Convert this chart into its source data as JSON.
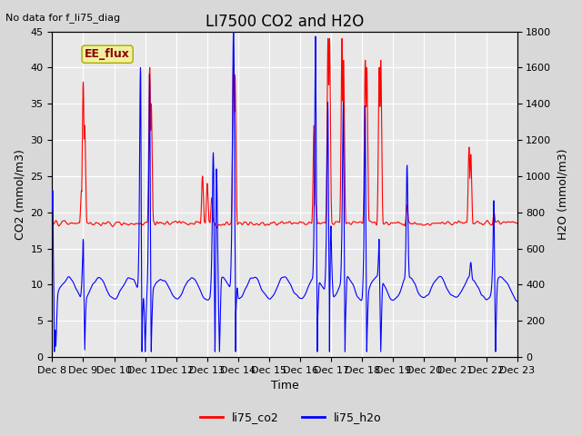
{
  "title": "LI7500 CO2 and H2O",
  "xlabel": "Time",
  "ylabel_left": "CO2 (mmol/m3)",
  "ylabel_right": "H2O (mmol/m3)",
  "annotation_top_left": "No data for f_li75_diag",
  "box_label": "EE_flux",
  "legend_labels": [
    "li75_co2",
    "li75_h2o"
  ],
  "co2_color": "red",
  "h2o_color": "blue",
  "co2_ylim": [
    0,
    45
  ],
  "h2o_ylim": [
    0,
    1800
  ],
  "co2_yticks": [
    0,
    5,
    10,
    15,
    20,
    25,
    30,
    35,
    40,
    45
  ],
  "h2o_yticks": [
    0,
    200,
    400,
    600,
    800,
    1000,
    1200,
    1400,
    1600,
    1800
  ],
  "fig_bg_color": "#d8d8d8",
  "plot_bg_color": "#e8e8e8",
  "grid_color": "#ffffff",
  "n_days": 15,
  "n_points_per_day": 144,
  "title_fontsize": 12,
  "label_fontsize": 9,
  "tick_fontsize": 8,
  "annot_fontsize": 8,
  "linewidth": 0.8,
  "xtick_labels": [
    "Dec 8",
    "Dec 9",
    "Dec 10",
    "Dec 11",
    "Dec 12",
    "Dec 13",
    "Dec 14",
    "Dec 15",
    "Dec 16",
    "Dec 17",
    "Dec 18",
    "Dec 19",
    "Dec 20",
    "Dec 21",
    "Dec 22",
    "Dec 23"
  ]
}
